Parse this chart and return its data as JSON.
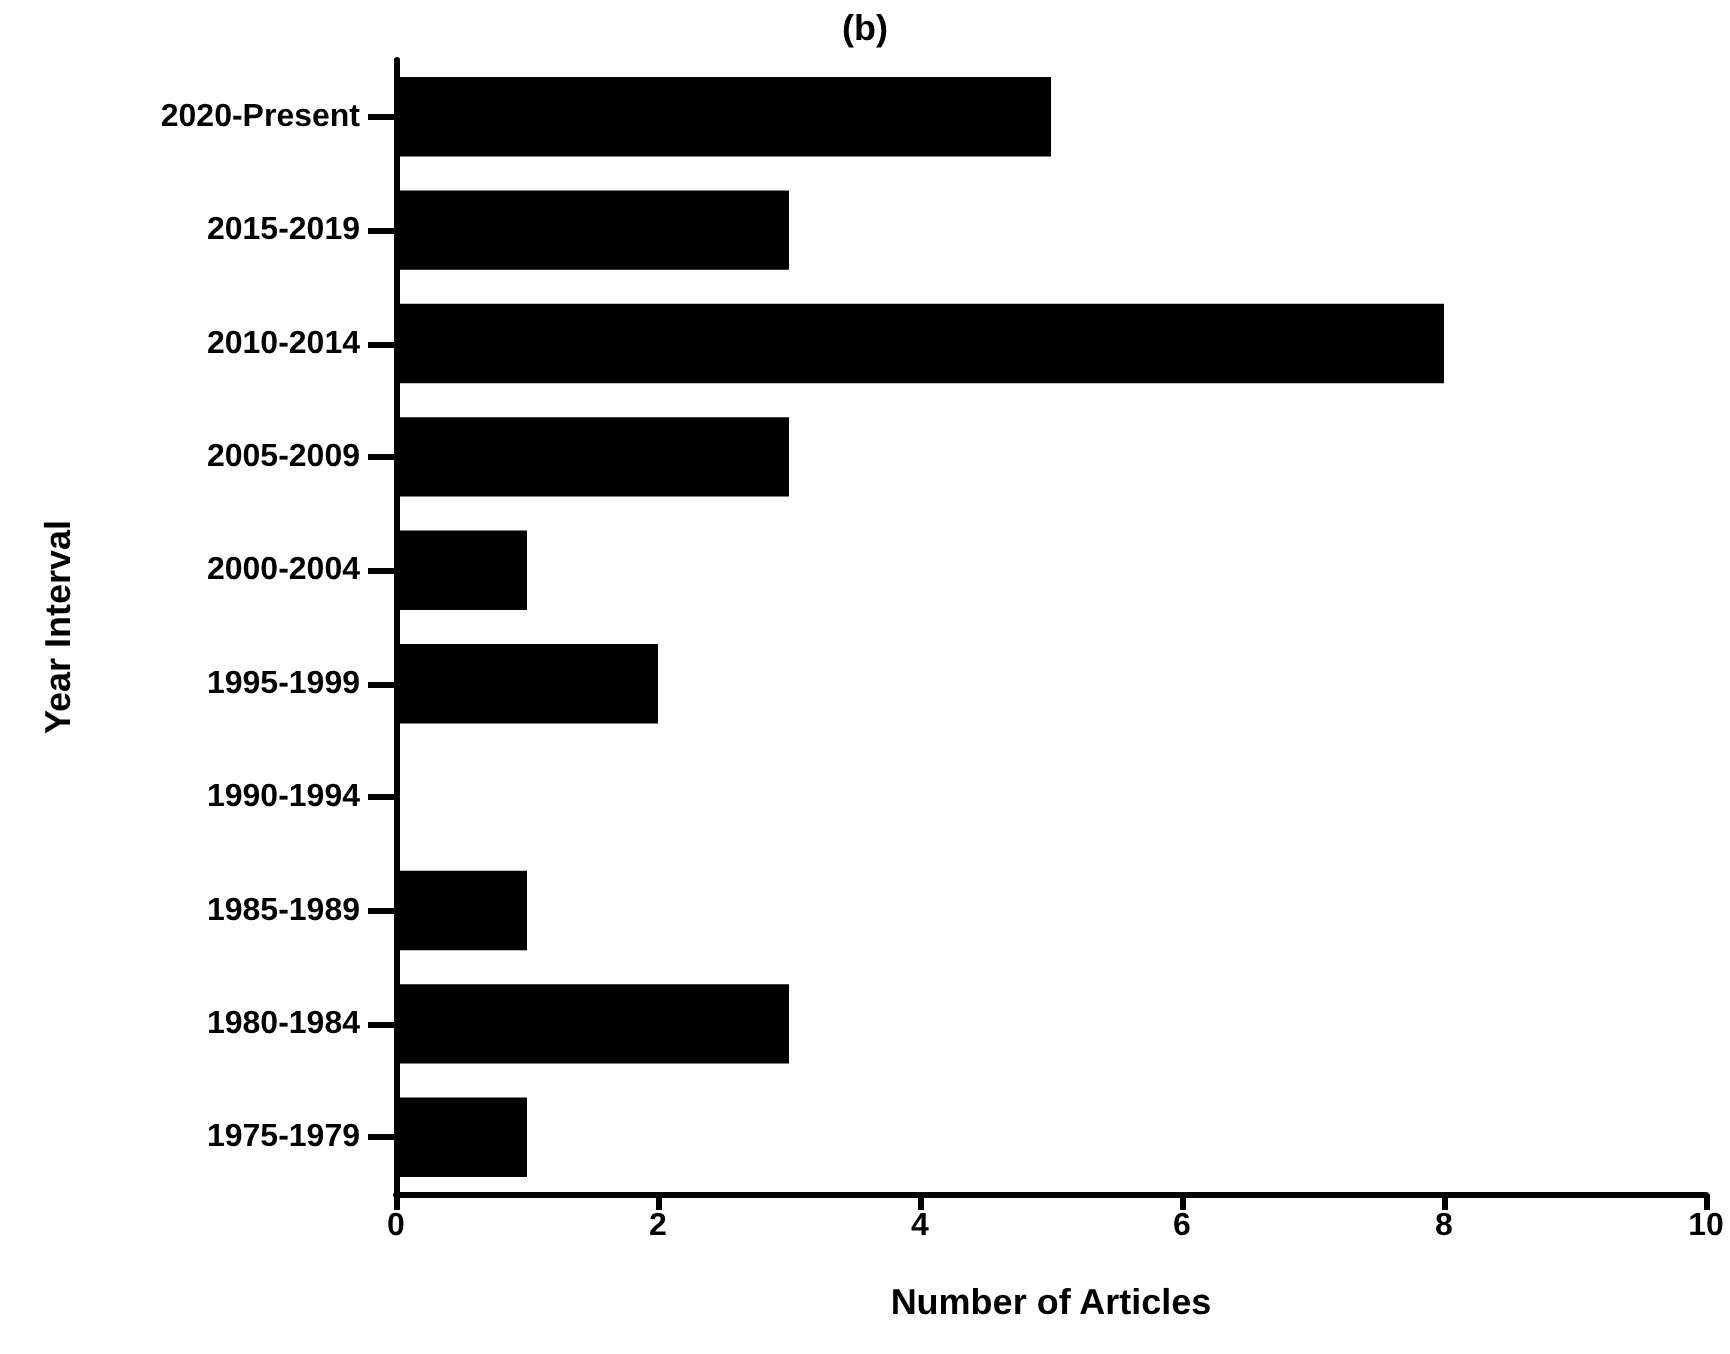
{
  "chart_data": {
    "type": "bar",
    "orientation": "horizontal",
    "title": "(b)",
    "xlabel": "Number of Articles",
    "ylabel": "Year Interval",
    "categories": [
      "2020-Present",
      "2015-2019",
      "2010-2014",
      "2005-2009",
      "2000-2004",
      "1995-1999",
      "1990-1994",
      "1985-1989",
      "1980-1984",
      "1975-1979"
    ],
    "values": [
      5,
      3,
      8,
      3,
      1,
      2,
      0,
      1,
      3,
      1
    ],
    "color": "#000000",
    "xlim": [
      0,
      10
    ],
    "xticks": [
      0,
      2,
      4,
      6,
      8,
      10
    ],
    "grid": false
  }
}
